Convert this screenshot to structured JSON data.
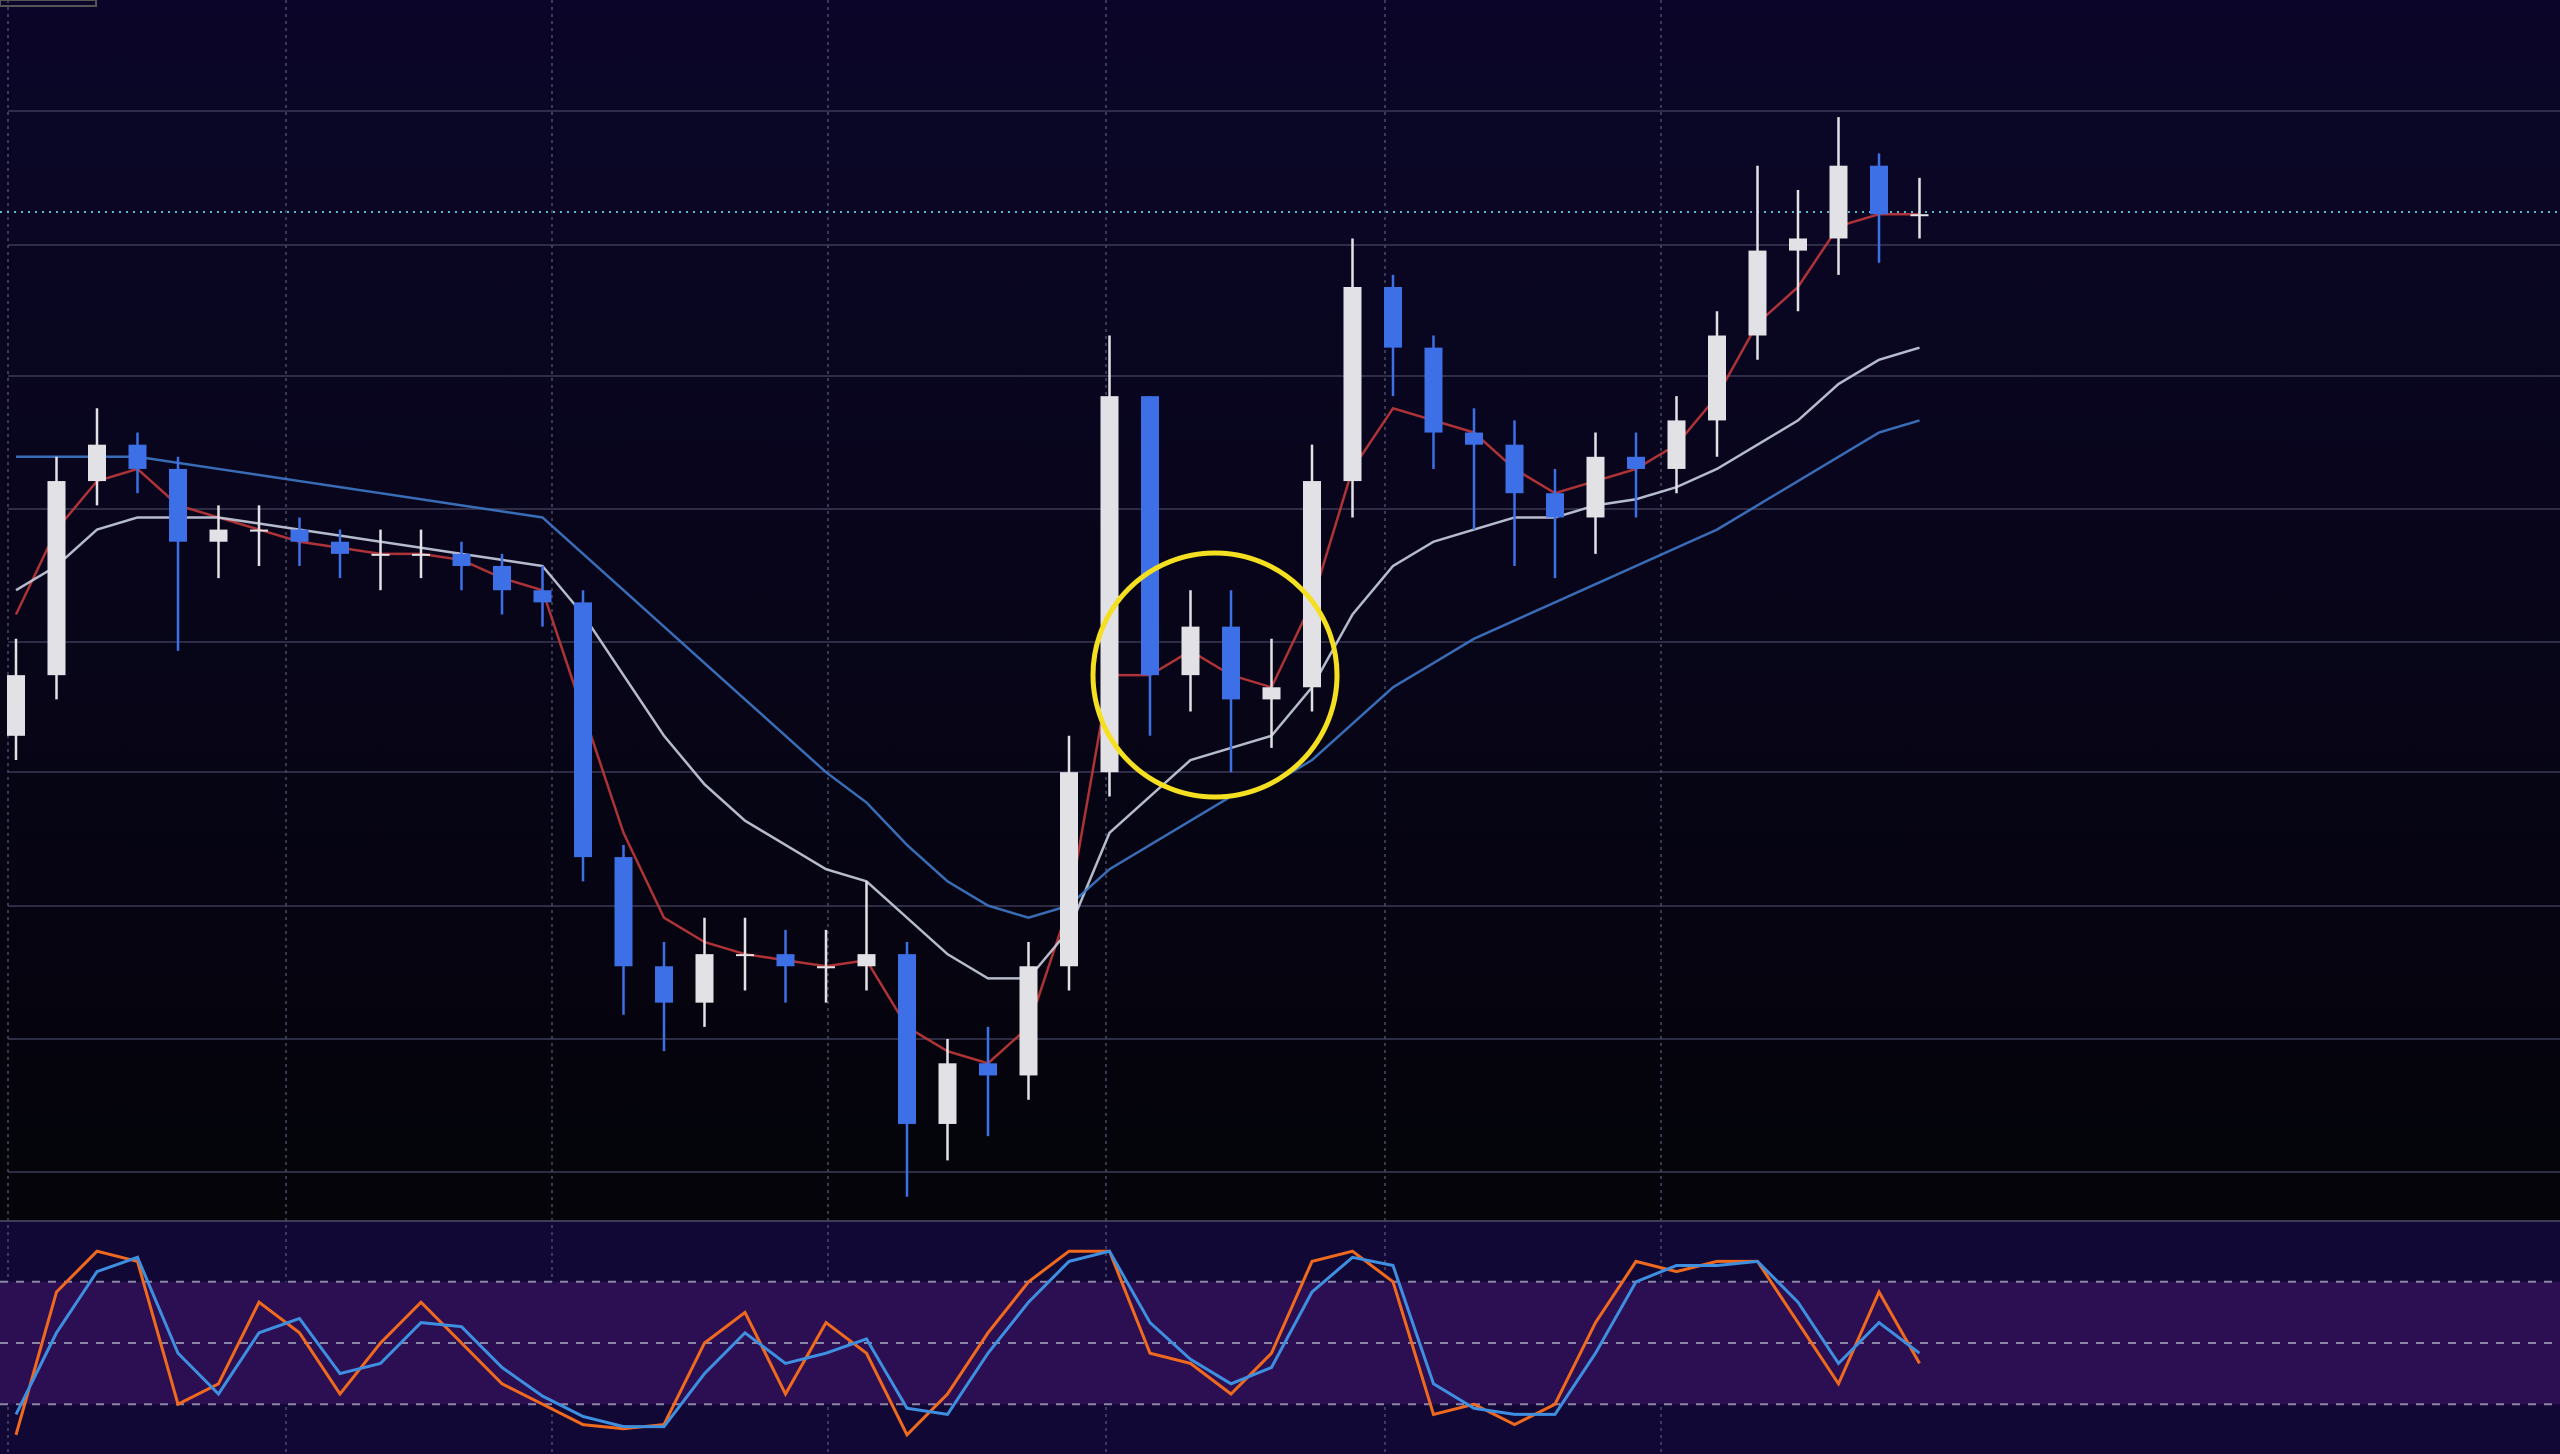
{
  "chart_data": [
    {
      "type": "candlestick",
      "ylim": [
        0,
        100
      ],
      "up_color": "#e2e2e6",
      "down_color": "#3d6fe6",
      "open": [
        40,
        45,
        61,
        64,
        62,
        56,
        57,
        57,
        56,
        55,
        55,
        55,
        54,
        52,
        51,
        30,
        21,
        18,
        22,
        22,
        21,
        21,
        22,
        8,
        13,
        12,
        21,
        37,
        68,
        45,
        49,
        43,
        44,
        61,
        77,
        72,
        65,
        64,
        60,
        58,
        63,
        62,
        66,
        73,
        80,
        81,
        87,
        83
      ],
      "high": [
        48,
        63,
        67,
        65,
        63,
        59,
        59,
        58,
        57,
        57,
        57,
        56,
        55,
        54,
        52,
        31,
        23,
        25,
        25,
        24,
        24,
        28,
        23,
        15,
        16,
        23,
        40,
        73,
        68,
        52,
        52,
        48,
        64,
        81,
        78,
        73,
        67,
        66,
        62,
        65,
        65,
        68,
        75,
        87,
        85,
        91,
        88,
        86
      ],
      "low": [
        38,
        43,
        59,
        60,
        47,
        53,
        54,
        54,
        53,
        52,
        53,
        52,
        50,
        49,
        28,
        17,
        14,
        16,
        19,
        18,
        18,
        19,
        2,
        5,
        7,
        10,
        19,
        35,
        40,
        42,
        37,
        39,
        42,
        58,
        68,
        62,
        57,
        54,
        53,
        55,
        58,
        60,
        63,
        71,
        75,
        78,
        79,
        81
      ],
      "close": [
        45,
        61,
        64,
        62,
        56,
        57,
        57,
        56,
        55,
        55,
        55,
        54,
        52,
        51,
        30,
        21,
        18,
        22,
        22,
        21,
        21,
        22,
        8,
        13,
        12,
        21,
        37,
        68,
        45,
        49,
        43,
        44,
        61,
        77,
        72,
        65,
        64,
        60,
        58,
        63,
        62,
        66,
        73,
        80,
        81,
        87,
        83,
        83
      ],
      "series": [
        {
          "color": "#c0393b",
          "values": [
            50,
            57,
            61,
            62,
            59,
            58,
            57,
            56,
            55.5,
            55,
            55,
            54.5,
            53,
            52,
            42,
            32,
            25,
            23,
            22,
            21.5,
            21,
            21.5,
            16,
            14,
            13,
            16,
            26,
            45,
            45,
            47,
            45,
            44,
            51,
            62,
            67,
            66,
            65,
            62,
            60,
            61,
            62,
            64,
            68,
            74,
            77,
            82,
            83,
            83
          ]
        },
        {
          "color": "#c9cfe0",
          "values": [
            52,
            54,
            57,
            58,
            58,
            58,
            57.5,
            57,
            56.5,
            56,
            55.5,
            55,
            54.5,
            54,
            50,
            45,
            40,
            36,
            33,
            31,
            29,
            28,
            25,
            22,
            20,
            20,
            24,
            32,
            35,
            38,
            39,
            40,
            44,
            50,
            54,
            56,
            57,
            58,
            58,
            59,
            59.5,
            60.5,
            62,
            64,
            66,
            69,
            71,
            72
          ]
        },
        {
          "color": "#3f78c8",
          "values": [
            63,
            63,
            63,
            63,
            62.5,
            62,
            61.5,
            61,
            60.5,
            60,
            59.5,
            59,
            58.5,
            58,
            55,
            52,
            49,
            46,
            43,
            40,
            37,
            34.5,
            31,
            28,
            26,
            25,
            26,
            29,
            31,
            33,
            35,
            36,
            38,
            41,
            44,
            46,
            48,
            49.5,
            51,
            52.5,
            54,
            55.5,
            57,
            59,
            61,
            63,
            65,
            66
          ]
        }
      ]
    },
    {
      "type": "line",
      "ylim": [
        0,
        100
      ],
      "yticks": [
        20,
        50,
        80
      ],
      "series": [
        {
          "color": "#f06a1e",
          "values": [
            5,
            75,
            95,
            90,
            20,
            30,
            70,
            55,
            25,
            50,
            70,
            50,
            30,
            20,
            10,
            8,
            10,
            50,
            65,
            25,
            60,
            45,
            5,
            25,
            55,
            80,
            95,
            95,
            45,
            40,
            25,
            45,
            90,
            95,
            80,
            15,
            20,
            10,
            20,
            60,
            90,
            85,
            90,
            90,
            60,
            30,
            75,
            40
          ]
        },
        {
          "color": "#3e8fe0",
          "values": [
            15,
            55,
            85,
            92,
            45,
            25,
            55,
            62,
            35,
            40,
            60,
            58,
            38,
            24,
            14,
            9,
            9,
            35,
            55,
            40,
            45,
            52,
            18,
            15,
            45,
            70,
            90,
            95,
            60,
            42,
            30,
            38,
            75,
            92,
            88,
            30,
            18,
            15,
            15,
            45,
            80,
            88,
            88,
            90,
            70,
            40,
            60,
            45
          ]
        }
      ]
    }
  ]
}
